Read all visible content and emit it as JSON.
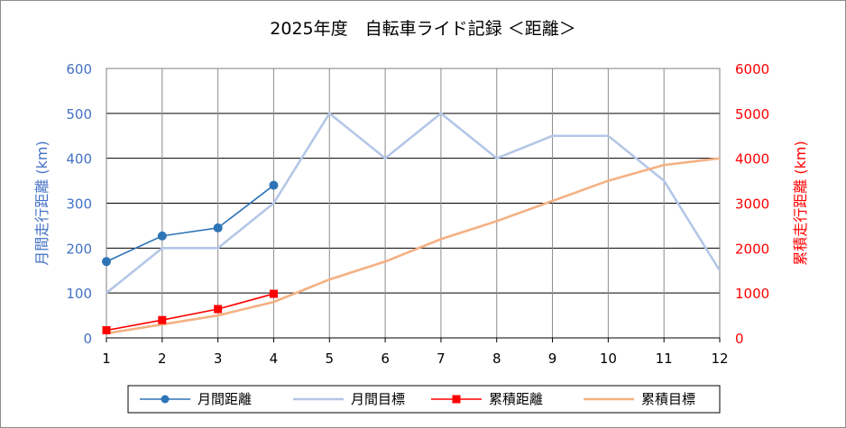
{
  "chart_data": {
    "type": "line",
    "title": "2025年度　自転車ライド記録 ＜距離＞",
    "x": [
      1,
      2,
      3,
      4,
      5,
      6,
      7,
      8,
      9,
      10,
      11,
      12
    ],
    "xlim": [
      1,
      12
    ],
    "y_left": {
      "label": "月間走行距離 (km)",
      "range": [
        0,
        600
      ],
      "ticks": [
        0,
        100,
        200,
        300,
        400,
        500,
        600
      ],
      "color": "#4472c4"
    },
    "y_right": {
      "label": "累積走行距離 (km)",
      "range": [
        0,
        6000
      ],
      "ticks": [
        0,
        1000,
        2000,
        3000,
        4000,
        5000,
        6000
      ],
      "color": "#ff0000"
    },
    "grid": true,
    "legend_position": "bottom",
    "series": [
      {
        "name": "月間距離",
        "axis": "left",
        "color": "#2e75b6",
        "marker": "circle",
        "values": [
          170,
          227,
          245,
          340,
          null,
          null,
          null,
          null,
          null,
          null,
          null,
          null
        ]
      },
      {
        "name": "月間目標",
        "axis": "left",
        "color": "#b4c7e7",
        "marker": "none",
        "values": [
          100,
          200,
          200,
          300,
          500,
          400,
          500,
          400,
          450,
          450,
          350,
          150
        ]
      },
      {
        "name": "累積距離",
        "axis": "right",
        "color": "#ff0000",
        "marker": "square",
        "values": [
          170,
          397,
          642,
          982,
          null,
          null,
          null,
          null,
          null,
          null,
          null,
          null
        ]
      },
      {
        "name": "累積目標",
        "axis": "right",
        "color": "#f4b183",
        "marker": "none",
        "values": [
          100,
          300,
          500,
          800,
          1300,
          1700,
          2200,
          2600,
          3050,
          3500,
          3850,
          4000
        ]
      }
    ]
  }
}
